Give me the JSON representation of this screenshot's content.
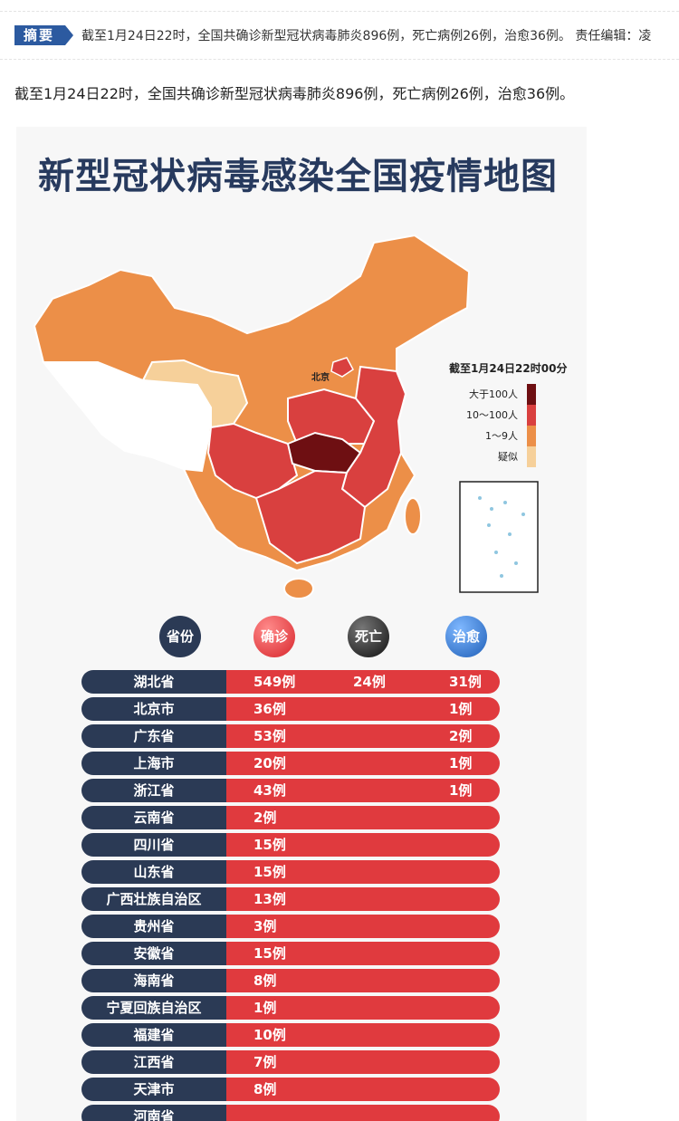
{
  "summary": {
    "tag": "摘要",
    "text": "截至1月24日22时，全国共确诊新型冠状病毒肺炎896例，死亡病例26例，治愈36例。 责任编辑：凌"
  },
  "lead": "截至1月24日22时，全国共确诊新型冠状病毒肺炎896例，死亡病例26例，治愈36例。",
  "infographic": {
    "title": "新型冠状病毒感染全国疫情地图",
    "map_labels": {
      "beijing": "北京"
    },
    "legend": {
      "title": "截至1月24日22时00分",
      "items": [
        {
          "label": "大于100人",
          "color": "#6e0f12"
        },
        {
          "label": "10〜100人",
          "color": "#d9403f"
        },
        {
          "label": "1〜9人",
          "color": "#ec8f48"
        },
        {
          "label": "疑似",
          "color": "#f6d09a"
        }
      ]
    },
    "map_colors": {
      "severe": "#6e0f12",
      "high": "#d9403f",
      "mid": "#ec8f48",
      "suspect": "#f6d09a",
      "none": "#ffffff"
    },
    "headers": {
      "province": "省份",
      "confirmed": "确诊",
      "death": "死亡",
      "cured": "治愈"
    },
    "rows": [
      {
        "province": "湖北省",
        "confirmed": "549例",
        "death": "24例",
        "cured": "31例"
      },
      {
        "province": "北京市",
        "confirmed": "36例",
        "death": "",
        "cured": "1例"
      },
      {
        "province": "广东省",
        "confirmed": "53例",
        "death": "",
        "cured": "2例"
      },
      {
        "province": "上海市",
        "confirmed": "20例",
        "death": "",
        "cured": "1例"
      },
      {
        "province": "浙江省",
        "confirmed": "43例",
        "death": "",
        "cured": "1例"
      },
      {
        "province": "云南省",
        "confirmed": "2例",
        "death": "",
        "cured": ""
      },
      {
        "province": "四川省",
        "confirmed": "15例",
        "death": "",
        "cured": ""
      },
      {
        "province": "山东省",
        "confirmed": "15例",
        "death": "",
        "cured": ""
      },
      {
        "province": "广西壮族自治区",
        "confirmed": "13例",
        "death": "",
        "cured": ""
      },
      {
        "province": "贵州省",
        "confirmed": "3例",
        "death": "",
        "cured": ""
      },
      {
        "province": "安徽省",
        "confirmed": "15例",
        "death": "",
        "cured": ""
      },
      {
        "province": "海南省",
        "confirmed": "8例",
        "death": "",
        "cured": ""
      },
      {
        "province": "宁夏回族自治区",
        "confirmed": "1例",
        "death": "",
        "cured": ""
      },
      {
        "province": "福建省",
        "confirmed": "10例",
        "death": "",
        "cured": ""
      },
      {
        "province": "江西省",
        "confirmed": "7例",
        "death": "",
        "cured": ""
      },
      {
        "province": "天津市",
        "confirmed": "8例",
        "death": "",
        "cured": ""
      },
      {
        "province": "河南省",
        "confirmed": "",
        "death": "",
        "cured": ""
      }
    ]
  }
}
